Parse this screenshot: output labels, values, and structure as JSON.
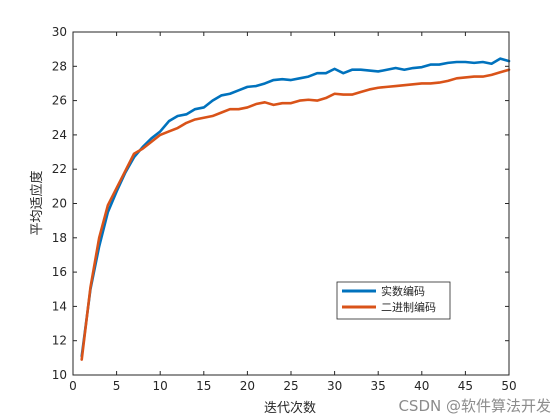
{
  "chart_data": {
    "type": "line",
    "xlabel": "迭代次数",
    "ylabel": "平均适应度",
    "xlim": [
      0,
      50
    ],
    "ylim": [
      10,
      30
    ],
    "xticks": [
      0,
      5,
      10,
      15,
      20,
      25,
      30,
      35,
      40,
      45,
      50
    ],
    "yticks": [
      10,
      12,
      14,
      16,
      18,
      20,
      22,
      24,
      26,
      28,
      30
    ],
    "grid": false,
    "legend_position": "lower-right",
    "x": [
      1,
      2,
      3,
      4,
      5,
      6,
      7,
      8,
      9,
      10,
      11,
      12,
      13,
      14,
      15,
      16,
      17,
      18,
      19,
      20,
      21,
      22,
      23,
      24,
      25,
      26,
      27,
      28,
      29,
      30,
      31,
      32,
      33,
      34,
      35,
      36,
      37,
      38,
      39,
      40,
      41,
      42,
      43,
      44,
      45,
      46,
      47,
      48,
      49,
      50
    ],
    "series": [
      {
        "name": "实数编码",
        "color": "#0072BD",
        "values": [
          11.1,
          15.0,
          17.5,
          19.5,
          20.7,
          21.8,
          22.7,
          23.3,
          23.8,
          24.2,
          24.8,
          25.1,
          25.2,
          25.5,
          25.6,
          26.0,
          26.3,
          26.4,
          26.6,
          26.8,
          26.85,
          27.0,
          27.2,
          27.25,
          27.2,
          27.3,
          27.4,
          27.6,
          27.6,
          27.85,
          27.6,
          27.8,
          27.8,
          27.75,
          27.7,
          27.8,
          27.9,
          27.8,
          27.9,
          27.95,
          28.1,
          28.1,
          28.2,
          28.25,
          28.25,
          28.2,
          28.25,
          28.15,
          28.45,
          28.3
        ]
      },
      {
        "name": "二进制编码",
        "color": "#D95319",
        "values": [
          10.9,
          15.1,
          18.0,
          19.9,
          20.9,
          21.9,
          22.9,
          23.2,
          23.6,
          24.0,
          24.2,
          24.4,
          24.7,
          24.9,
          25.0,
          25.1,
          25.3,
          25.5,
          25.5,
          25.6,
          25.8,
          25.9,
          25.75,
          25.85,
          25.85,
          26.0,
          26.05,
          26.0,
          26.15,
          26.4,
          26.35,
          26.35,
          26.5,
          26.65,
          26.75,
          26.8,
          26.85,
          26.9,
          26.95,
          27.0,
          27.0,
          27.05,
          27.15,
          27.3,
          27.35,
          27.4,
          27.4,
          27.5,
          27.65,
          27.8
        ]
      }
    ]
  },
  "watermark": "CSDN @软件算法开发"
}
